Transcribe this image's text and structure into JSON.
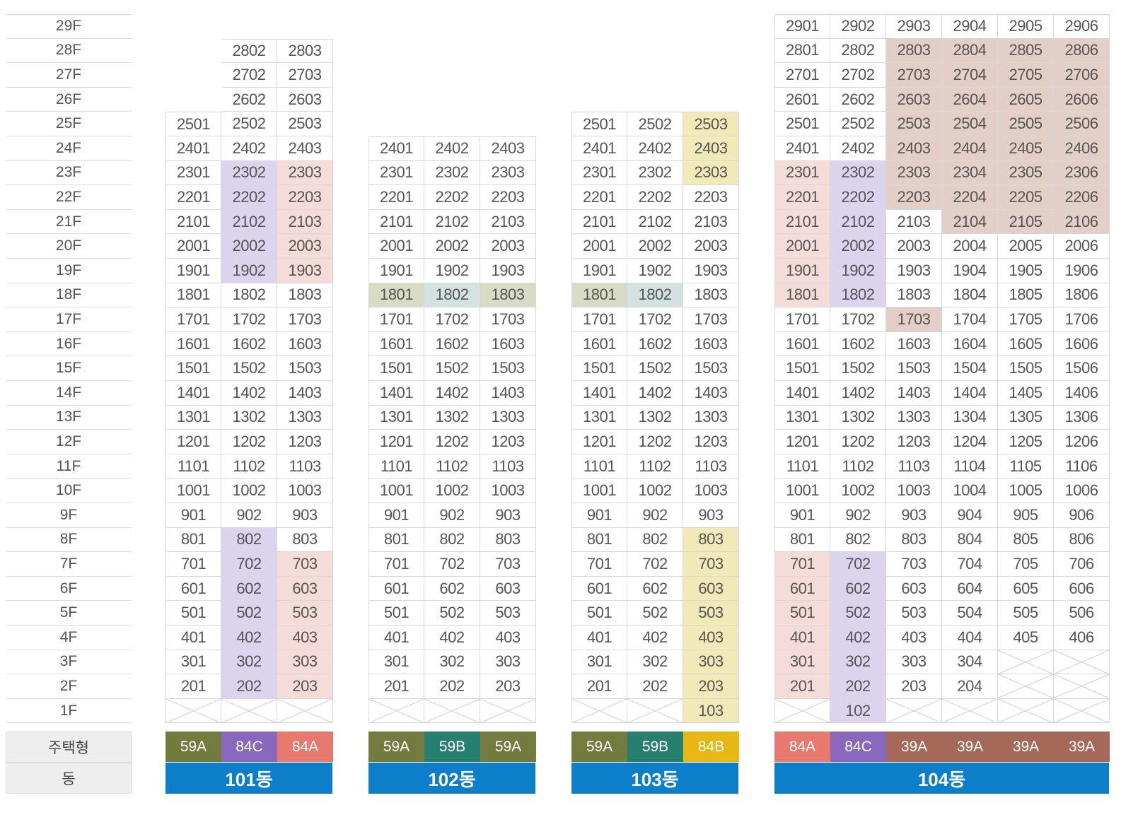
{
  "legend": {
    "type_label": "주택형",
    "building_label": "동"
  },
  "colors": {
    "purple": "#dcd3ee",
    "pink": "#f6dcd8",
    "yellow": "#f1e9b8",
    "mauve": "#e4cec8",
    "olive": "#d8dcc4",
    "teal": "#d3e1e1",
    "type_59A": "#737b3f",
    "type_59B": "#27806f",
    "type_84A": "#e8796f",
    "type_84B": "#e7b813",
    "type_84C": "#8867bc",
    "type_39A": "#a5695a",
    "building_bar": "#0d7fca"
  },
  "floors": [
    "29F",
    "28F",
    "27F",
    "26F",
    "25F",
    "24F",
    "23F",
    "22F",
    "21F",
    "20F",
    "19F",
    "18F",
    "17F",
    "16F",
    "15F",
    "14F",
    "13F",
    "12F",
    "11F",
    "10F",
    "9F",
    "8F",
    "7F",
    "6F",
    "5F",
    "4F",
    "3F",
    "2F",
    "1F"
  ],
  "buildings": [
    {
      "name": "101동",
      "types": [
        "59A",
        "84C",
        "84A"
      ],
      "type_colors": [
        "#737b3f",
        "#8867bc",
        "#e8796f"
      ],
      "columns": [
        {
          "min": 2,
          "max": 25,
          "empty": [
            1
          ]
        },
        {
          "min": 2,
          "max": 28,
          "empty": [
            1
          ]
        },
        {
          "min": 2,
          "max": 28,
          "empty": [
            1
          ]
        }
      ],
      "highlights": [
        {
          "color": "purple",
          "units": [
            "2302",
            "2202",
            "2102",
            "2002",
            "1902",
            "802",
            "702",
            "602",
            "502",
            "402",
            "302",
            "202"
          ]
        },
        {
          "color": "pink",
          "units": [
            "2303",
            "2203",
            "2103",
            "2003",
            "1903",
            "703",
            "603",
            "503",
            "403",
            "303",
            "203"
          ]
        }
      ]
    },
    {
      "name": "102동",
      "types": [
        "59A",
        "59B",
        "59A"
      ],
      "type_colors": [
        "#737b3f",
        "#27806f",
        "#737b3f"
      ],
      "columns": [
        {
          "min": 2,
          "max": 24,
          "empty": [
            1
          ]
        },
        {
          "min": 2,
          "max": 24,
          "empty": [
            1
          ]
        },
        {
          "min": 2,
          "max": 24,
          "empty": [
            1
          ]
        }
      ],
      "highlights": [
        {
          "color": "olive",
          "units": [
            "1801",
            "1803"
          ]
        },
        {
          "color": "teal",
          "units": [
            "1802"
          ]
        }
      ]
    },
    {
      "name": "103동",
      "types": [
        "59A",
        "59B",
        "84B"
      ],
      "type_colors": [
        "#737b3f",
        "#27806f",
        "#e7b813"
      ],
      "columns": [
        {
          "min": 2,
          "max": 25,
          "empty": [
            1
          ]
        },
        {
          "min": 2,
          "max": 25,
          "empty": [
            1
          ]
        },
        {
          "min": 1,
          "max": 25,
          "empty": []
        }
      ],
      "highlights": [
        {
          "color": "yellow",
          "units": [
            "2503",
            "2403",
            "2303",
            "803",
            "703",
            "603",
            "503",
            "403",
            "303",
            "203",
            "103"
          ]
        },
        {
          "color": "olive",
          "units": [
            "1801"
          ]
        },
        {
          "color": "teal",
          "units": [
            "1802"
          ]
        }
      ]
    },
    {
      "name": "104동",
      "types": [
        "84A",
        "84C",
        "39A",
        "39A",
        "39A",
        "39A"
      ],
      "type_colors": [
        "#e8796f",
        "#8867bc",
        "#a5695a",
        "#a5695a",
        "#a5695a",
        "#a5695a"
      ],
      "columns": [
        {
          "min": 2,
          "max": 29,
          "empty": [
            1
          ]
        },
        {
          "min": 1,
          "max": 29,
          "empty": []
        },
        {
          "min": 2,
          "max": 29,
          "empty": [
            1
          ]
        },
        {
          "min": 2,
          "max": 29,
          "empty": [
            1
          ]
        },
        {
          "min": 4,
          "max": 29,
          "empty": [
            3,
            2,
            1
          ]
        },
        {
          "min": 4,
          "max": 29,
          "empty": [
            3,
            2,
            1
          ]
        }
      ],
      "highlights": [
        {
          "color": "pink",
          "units": [
            "2301",
            "2201",
            "2101",
            "2001",
            "1901",
            "1801",
            "701",
            "601",
            "501",
            "401",
            "301",
            "201"
          ]
        },
        {
          "color": "purple",
          "units": [
            "2302",
            "2202",
            "2102",
            "2002",
            "1902",
            "1802",
            "702",
            "602",
            "502",
            "402",
            "302",
            "202",
            "102"
          ]
        },
        {
          "color": "mauve",
          "units": [
            "2803",
            "2804",
            "2805",
            "2806",
            "2703",
            "2704",
            "2705",
            "2706",
            "2603",
            "2604",
            "2605",
            "2606",
            "2503",
            "2504",
            "2505",
            "2506",
            "2403",
            "2404",
            "2405",
            "2406",
            "2303",
            "2304",
            "2305",
            "2306",
            "2203",
            "2204",
            "2205",
            "2206",
            "2104",
            "2105",
            "2106",
            "1703"
          ]
        }
      ]
    }
  ]
}
